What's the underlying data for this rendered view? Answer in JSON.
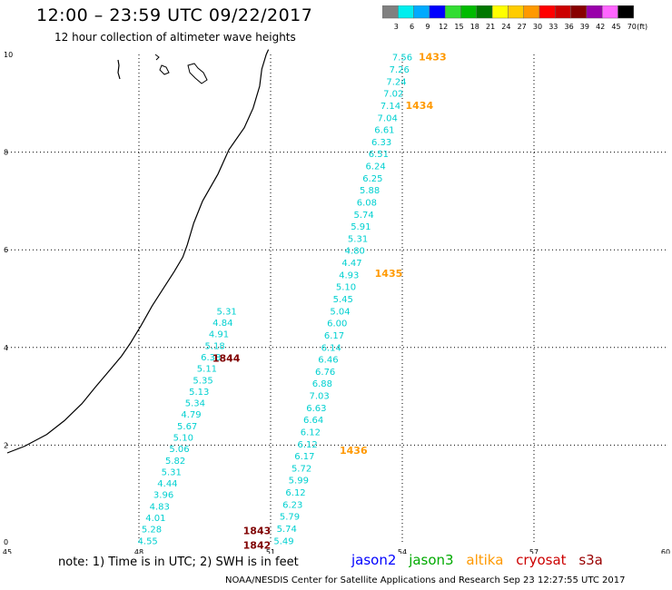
{
  "header": {
    "title": "12:00 – 23:59 UTC 09/22/2017",
    "subtitle": "12 hour collection of altimeter wave heights"
  },
  "colorbar": {
    "labels": [
      "3",
      "6",
      "9",
      "12",
      "15",
      "18",
      "21",
      "24",
      "27",
      "30",
      "33",
      "36",
      "39",
      "42",
      "45",
      "70",
      "(ft)"
    ],
    "colors": [
      "#808080",
      "#00eeee",
      "#00aaff",
      "#0000ff",
      "#33dd33",
      "#00bb00",
      "#007700",
      "#ffff00",
      "#ffcc00",
      "#ff9900",
      "#ff0000",
      "#cc0000",
      "#880000",
      "#9900aa",
      "#ff66ff",
      "#000000"
    ]
  },
  "axes": {
    "x_ticks": [
      45,
      48,
      51,
      54,
      57,
      60
    ],
    "x_labels": [
      "45",
      "48",
      "51",
      "54",
      "57",
      "60"
    ],
    "y_ticks": [
      0,
      2,
      4,
      6,
      8,
      10
    ],
    "y_labels": [
      "0",
      "2",
      "4",
      "6",
      "8",
      "10"
    ]
  },
  "map_data": {
    "satellite_colors": {
      "jason2": "#0000ff",
      "jason3": "#00aa00",
      "altika": "#ff9900",
      "cryosat": "#cc0000",
      "s3a": "#990000",
      "pass_altika": "#ff9900",
      "pass_s3a": "#800000",
      "track": "#00d0d0"
    },
    "track_a": {
      "lon_range": [
        51.3,
        54.0
      ],
      "lat_range": [
        0.05,
        9.95
      ],
      "values": [
        "7.56",
        "7.26",
        "7.24",
        "7.02",
        "7.14",
        "7.04",
        "6.61",
        "6.33",
        "6.51",
        "6.24",
        "6.25",
        "5.88",
        "6.08",
        "5.74",
        "5.91",
        "5.31",
        "4.80",
        "4.47",
        "4.93",
        "5.10",
        "5.45",
        "5.04",
        "6.00",
        "6.17",
        "6.14",
        "6.46",
        "6.76",
        "6.88",
        "7.03",
        "6.63",
        "6.64",
        "6.12",
        "6.12",
        "6.17",
        "5.72",
        "5.99",
        "6.12",
        "6.23",
        "5.79",
        "5.74",
        "5.49"
      ]
    },
    "track_b": {
      "lon_range": [
        48.2,
        50.0
      ],
      "lat_range": [
        4.75,
        0.05
      ],
      "values": [
        "5.31",
        "4.84",
        "4.91",
        "5.18",
        "6.38",
        "5.11",
        "5.35",
        "5.13",
        "5.34",
        "4.79",
        "5.67",
        "5.10",
        "5.06",
        "5.82",
        "5.31",
        "4.44",
        "3.96",
        "4.83",
        "4.01",
        "5.28",
        "4.55"
      ]
    },
    "pass_times": [
      {
        "time": "1433",
        "lon": 54.0,
        "lat": 9.95,
        "sat": "altika"
      },
      {
        "time": "1434",
        "lon": 53.7,
        "lat": 8.96,
        "sat": "altika"
      },
      {
        "time": "1435",
        "lon": 53.0,
        "lat": 5.52,
        "sat": "altika"
      },
      {
        "time": "1436",
        "lon": 52.2,
        "lat": 1.9,
        "sat": "altika"
      },
      {
        "time": "1844",
        "lon": 49.3,
        "lat": 3.78,
        "sat": "s3a"
      },
      {
        "time": "1843",
        "lon": 50.0,
        "lat": 0.25,
        "sat": "s3a"
      },
      {
        "time": "1842",
        "lon": 50.0,
        "lat": -0.05,
        "sat": "s3a"
      }
    ],
    "coastline": [
      [
        45.0,
        1.84
      ],
      [
        45.4,
        1.98
      ],
      [
        45.9,
        2.22
      ],
      [
        46.3,
        2.5
      ],
      [
        46.7,
        2.85
      ],
      [
        47.0,
        3.18
      ],
      [
        47.3,
        3.5
      ],
      [
        47.6,
        3.82
      ],
      [
        47.8,
        4.08
      ],
      [
        48.05,
        4.45
      ],
      [
        48.3,
        4.85
      ],
      [
        48.55,
        5.2
      ],
      [
        48.8,
        5.55
      ],
      [
        49.0,
        5.85
      ],
      [
        49.1,
        6.1
      ],
      [
        49.25,
        6.55
      ],
      [
        49.45,
        7.0
      ],
      [
        49.8,
        7.55
      ],
      [
        50.05,
        8.05
      ],
      [
        50.4,
        8.5
      ],
      [
        50.6,
        8.9
      ],
      [
        50.75,
        9.35
      ],
      [
        50.8,
        9.7
      ],
      [
        50.9,
        10.0
      ],
      [
        50.95,
        10.1
      ]
    ]
  },
  "footer": {
    "note": "note:  1) Time is in UTC;  2) SWH is in feet",
    "credit": "NOAA/NESDIS Center for Satellite Applications and Research     Sep 23 12:27:55 UTC 2017",
    "satellites": {
      "jason2": "jason2",
      "jason3": "jason3",
      "altika": "altika",
      "cryosat": "cryosat",
      "s3a": "s3a"
    }
  }
}
